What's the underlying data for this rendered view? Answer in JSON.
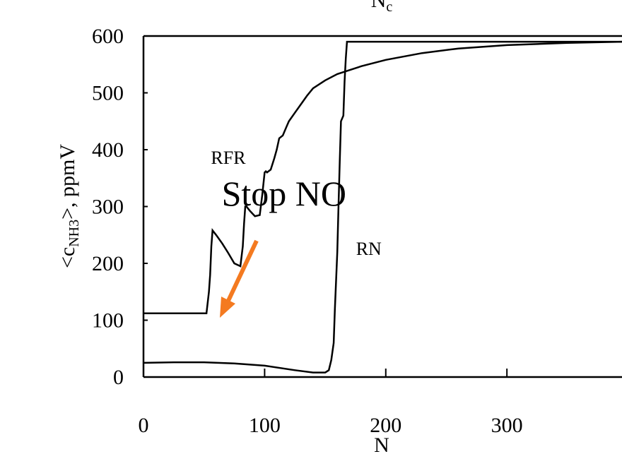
{
  "chart_data": {
    "type": "line",
    "x2_label": {
      "text": "N",
      "sub": "c"
    },
    "xlabel": "N",
    "ylabel": {
      "pre": "<c",
      "sub": "NH3",
      "post": ">, ppmV"
    },
    "xlim": [
      0,
      395
    ],
    "ylim": [
      0,
      600
    ],
    "xticks": [
      0,
      100,
      200,
      300
    ],
    "yticks": [
      0,
      100,
      200,
      300,
      400,
      500,
      600
    ],
    "annotations": [
      {
        "text": "RFR",
        "x": 70,
        "y": 375
      },
      {
        "text": "Stop NO",
        "x": 116,
        "y": 302
      },
      {
        "text": "RN",
        "x": 186,
        "y": 215
      }
    ],
    "series": [
      {
        "name": "RFR",
        "color": "#000000",
        "x": [
          0,
          52,
          54,
          55,
          56,
          57,
          60,
          65,
          70,
          75,
          80,
          82,
          83,
          84,
          85,
          88,
          92,
          96,
          98,
          100,
          101,
          102,
          105,
          108,
          110,
          112,
          115,
          118,
          120,
          125,
          130,
          135,
          140,
          150,
          160,
          170,
          180,
          200,
          230,
          260,
          300,
          350,
          395
        ],
        "values": [
          112,
          112,
          150,
          180,
          230,
          258,
          250,
          235,
          218,
          200,
          195,
          230,
          270,
          300,
          300,
          292,
          283,
          285,
          320,
          360,
          362,
          360,
          365,
          385,
          400,
          420,
          425,
          440,
          450,
          465,
          480,
          495,
          508,
          522,
          533,
          540,
          547,
          558,
          570,
          578,
          584,
          588,
          590
        ]
      },
      {
        "name": "RN",
        "color": "#000000",
        "x": [
          0,
          25,
          50,
          75,
          100,
          125,
          140,
          150,
          153,
          155,
          157,
          158,
          160,
          161,
          162,
          163,
          165,
          166,
          167,
          168,
          200,
          300,
          395
        ],
        "values": [
          25,
          26,
          26,
          24,
          20,
          12,
          8,
          8,
          12,
          30,
          60,
          120,
          220,
          300,
          380,
          450,
          460,
          520,
          560,
          590,
          590,
          590,
          590
        ]
      }
    ]
  }
}
